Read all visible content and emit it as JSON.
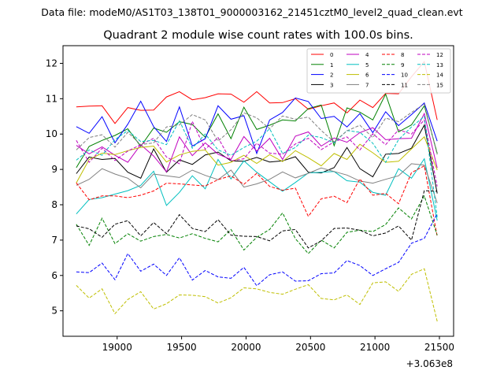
{
  "chart_data": {
    "type": "line",
    "suptitle": "Data file: modeM0/AS1T03_138T01_9000003162_21451cztM0_level2_quad_clean.evt",
    "title": "Quadrant 2 module wise count rates with 100.0s bins.",
    "xlabel": "",
    "ylabel": "",
    "x_offset_label": "+3.063e8",
    "xlim": [
      18580,
      21610
    ],
    "ylim": [
      4.28,
      12.5
    ],
    "x_ticks": [
      19000,
      19500,
      20000,
      20500,
      21000,
      21500
    ],
    "x_tick_labels": [
      "19000",
      "19500",
      "20000",
      "20500",
      "21000",
      "21500"
    ],
    "y_ticks": [
      5,
      6,
      7,
      8,
      9,
      10,
      11,
      12
    ],
    "y_tick_labels": [
      "5",
      "6",
      "7",
      "8",
      "9",
      "10",
      "11",
      "12"
    ],
    "x": [
      18683,
      18783,
      18883,
      18983,
      19083,
      19183,
      19283,
      19383,
      19483,
      19583,
      19683,
      19783,
      19883,
      19983,
      20083,
      20183,
      20283,
      20383,
      20483,
      20583,
      20683,
      20783,
      20883,
      20983,
      21083,
      21183,
      21283,
      21383,
      21483
    ],
    "legend_location": "upper right",
    "series": [
      {
        "name": "0",
        "color": "#ff0000",
        "style": "solid",
        "values": [
          10.77,
          10.79,
          10.8,
          10.3,
          10.75,
          10.67,
          10.68,
          11.05,
          11.2,
          10.97,
          11.03,
          11.14,
          11.13,
          10.9,
          11.2,
          10.88,
          10.89,
          11.0,
          10.7,
          10.8,
          10.88,
          10.6,
          10.96,
          10.75,
          11.15,
          11.14,
          11.62,
          12.05,
          10.4
        ]
      },
      {
        "name": "1",
        "color": "#008000",
        "style": "solid",
        "values": [
          9.05,
          9.65,
          9.82,
          9.96,
          10.15,
          9.65,
          10.17,
          10.05,
          10.35,
          10.27,
          9.91,
          10.57,
          9.87,
          10.76,
          10.13,
          10.25,
          10.4,
          10.37,
          10.72,
          10.82,
          9.67,
          10.74,
          10.62,
          10.4,
          11.13,
          10.06,
          10.26,
          10.8,
          9.45
        ]
      },
      {
        "name": "2",
        "color": "#0000ff",
        "style": "solid",
        "values": [
          10.21,
          10.02,
          10.49,
          9.75,
          10.28,
          10.93,
          10.21,
          9.79,
          10.77,
          9.66,
          9.87,
          10.8,
          10.42,
          10.52,
          9.45,
          10.4,
          10.61,
          11.02,
          10.92,
          10.44,
          10.5,
          10.2,
          10.58,
          10.04,
          10.63,
          10.24,
          10.55,
          10.88,
          9.8
        ]
      },
      {
        "name": "3",
        "color": "#000000",
        "style": "solid",
        "values": [
          8.88,
          9.35,
          9.28,
          9.31,
          8.92,
          8.75,
          9.58,
          8.92,
          9.27,
          9.14,
          9.41,
          9.49,
          9.24,
          9.23,
          9.34,
          9.21,
          9.24,
          9.36,
          8.92,
          8.9,
          9.05,
          9.62,
          9.02,
          8.79,
          9.43,
          9.45,
          9.6,
          10.25,
          8.32
        ]
      },
      {
        "name": "4",
        "color": "#bf00bf",
        "style": "solid",
        "values": [
          9.68,
          9.44,
          9.64,
          9.4,
          9.2,
          9.7,
          9.38,
          8.93,
          9.92,
          9.39,
          9.75,
          9.43,
          9.28,
          9.93,
          9.52,
          9.88,
          9.28,
          9.94,
          10.06,
          9.66,
          9.89,
          9.77,
          10.04,
          10.18,
          9.84,
          9.87,
          9.88,
          10.58,
          9.04
        ]
      },
      {
        "name": "5",
        "color": "#00bfbf",
        "style": "solid",
        "values": [
          7.74,
          8.15,
          8.2,
          8.3,
          8.4,
          8.55,
          8.95,
          7.98,
          8.35,
          8.82,
          8.45,
          9.28,
          8.73,
          9.24,
          8.92,
          8.65,
          8.38,
          8.63,
          8.9,
          8.92,
          8.94,
          8.68,
          8.64,
          8.35,
          8.27,
          9.02,
          8.75,
          9.3,
          7.55
        ]
      },
      {
        "name": "6",
        "color": "#bfbf00",
        "style": "solid",
        "values": [
          8.62,
          9.28,
          9.46,
          9.42,
          9.53,
          9.62,
          9.66,
          9.21,
          9.41,
          9.51,
          9.55,
          9.12,
          9.2,
          9.4,
          9.17,
          9.42,
          9.22,
          9.53,
          9.33,
          9.1,
          9.45,
          9.28,
          9.71,
          9.47,
          9.2,
          9.23,
          9.58,
          9.92,
          8.98
        ]
      },
      {
        "name": "7",
        "color": "#808080",
        "style": "solid",
        "values": [
          8.55,
          8.72,
          9.02,
          8.87,
          8.75,
          8.48,
          8.87,
          8.82,
          8.77,
          8.98,
          8.83,
          8.71,
          8.98,
          8.5,
          8.59,
          8.72,
          8.93,
          8.76,
          8.89,
          9.04,
          8.94,
          8.84,
          8.67,
          8.61,
          8.72,
          8.82,
          9.16,
          9.12,
          8.05
        ]
      },
      {
        "name": "8",
        "color": "#ff0000",
        "style": "dashed",
        "values": [
          8.62,
          8.14,
          8.25,
          8.25,
          8.2,
          8.27,
          8.39,
          8.61,
          8.59,
          8.56,
          8.53,
          8.71,
          8.82,
          8.58,
          8.89,
          8.52,
          8.41,
          8.47,
          7.67,
          8.17,
          8.24,
          8.06,
          8.73,
          8.27,
          8.32,
          8.03,
          8.91,
          9.1,
          7.1
        ]
      },
      {
        "name": "9",
        "color": "#008000",
        "style": "dashed",
        "values": [
          7.45,
          6.85,
          7.62,
          6.9,
          7.18,
          6.97,
          7.1,
          7.16,
          7.06,
          7.18,
          7.05,
          6.95,
          7.3,
          6.72,
          7.08,
          7.3,
          7.77,
          7.04,
          6.62,
          7.0,
          6.78,
          7.22,
          7.28,
          7.24,
          7.44,
          7.91,
          7.6,
          8.25,
          7.14
        ]
      },
      {
        "name": "10",
        "color": "#0000ff",
        "style": "dashed",
        "values": [
          6.1,
          6.08,
          6.35,
          5.88,
          6.62,
          6.12,
          6.32,
          6.0,
          6.5,
          5.87,
          6.14,
          5.96,
          5.92,
          6.23,
          5.71,
          6.02,
          6.1,
          5.84,
          5.85,
          6.05,
          6.07,
          6.42,
          6.28,
          6.0,
          6.19,
          6.37,
          6.91,
          7.05,
          7.75
        ]
      },
      {
        "name": "11",
        "color": "#000000",
        "style": "dashed",
        "values": [
          7.4,
          7.32,
          7.08,
          7.45,
          7.55,
          7.12,
          7.5,
          7.18,
          7.72,
          7.33,
          7.24,
          7.58,
          7.14,
          7.11,
          7.1,
          6.98,
          7.26,
          7.3,
          6.78,
          6.98,
          7.33,
          7.34,
          7.28,
          7.12,
          7.2,
          7.4,
          7.0,
          8.4,
          8.38
        ]
      },
      {
        "name": "12",
        "color": "#bf00bf",
        "style": "dashed",
        "values": [
          9.82,
          9.2,
          9.6,
          9.25,
          9.52,
          9.7,
          9.88,
          9.35,
          9.16,
          10.36,
          9.57,
          9.9,
          9.24,
          9.3,
          9.74,
          9.46,
          9.43,
          9.72,
          9.88,
          9.56,
          9.78,
          9.92,
          9.55,
          10.01,
          9.7,
          10.12,
          10.0,
          10.4,
          8.52
        ]
      },
      {
        "name": "13",
        "color": "#00bfbf",
        "style": "dashed",
        "values": [
          9.26,
          9.55,
          9.4,
          9.84,
          10.1,
          9.79,
          9.82,
          9.7,
          10.38,
          9.6,
          10.0,
          9.55,
          9.4,
          9.62,
          9.8,
          10.15,
          9.45,
          9.62,
          9.97,
          9.9,
          9.75,
          10.1,
          10.05,
          9.74,
          9.2,
          9.84,
          10.2,
          10.5,
          7.65
        ]
      },
      {
        "name": "14",
        "color": "#bfbf00",
        "style": "dashed",
        "values": [
          5.72,
          5.36,
          5.62,
          4.92,
          5.32,
          5.54,
          5.05,
          5.2,
          5.45,
          5.44,
          5.4,
          5.22,
          5.37,
          5.65,
          5.62,
          5.52,
          5.47,
          5.61,
          5.74,
          5.35,
          5.31,
          5.45,
          5.18,
          5.79,
          5.82,
          5.55,
          6.03,
          6.19,
          4.7
        ]
      },
      {
        "name": "15",
        "color": "#808080",
        "style": "dashed",
        "values": [
          9.55,
          9.9,
          9.98,
          9.63,
          10.05,
          9.7,
          9.75,
          10.2,
          10.26,
          10.55,
          10.4,
          9.8,
          10.12,
          10.6,
          10.46,
          10.15,
          10.51,
          10.42,
          10.48,
          10.1,
          9.78,
          10.09,
          10.25,
          9.9,
          10.45,
          10.35,
          10.61,
          10.85,
          9.42
        ]
      }
    ]
  }
}
